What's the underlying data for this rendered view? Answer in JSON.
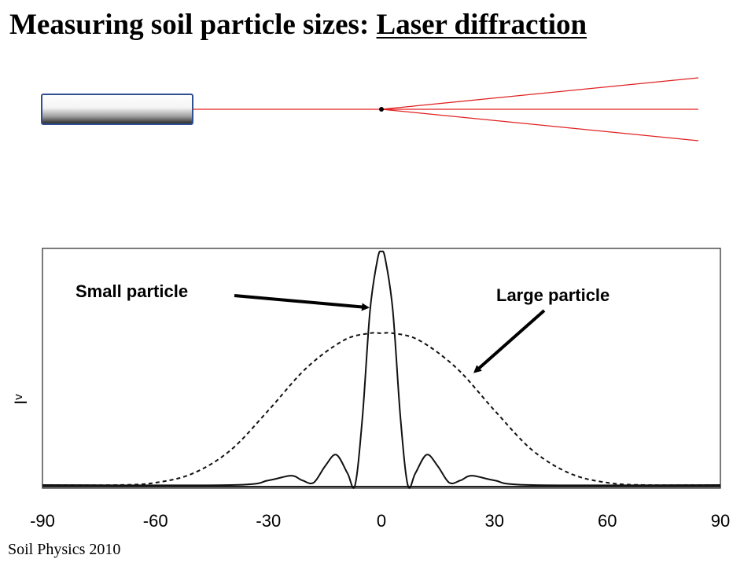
{
  "title": {
    "prefix": "Measuring soil particle sizes: ",
    "underlined": "Laser diffraction"
  },
  "labels": {
    "small": "Small particle",
    "large": "Large particle"
  },
  "footer": "Soil Physics 2010",
  "colors": {
    "beam": "#e02020",
    "laser_border": "#2f4f8f",
    "curve": "#111111"
  },
  "chart_data": {
    "type": "line",
    "x_ticks": [
      -90,
      -60,
      -30,
      0,
      30,
      60,
      90
    ],
    "xlim": [
      -90,
      90
    ],
    "ylabel": "Iv",
    "series": [
      {
        "name": "Small particle",
        "style": "solid",
        "x": [
          -90,
          -40,
          -30,
          -24,
          -21,
          -18,
          -15,
          -12,
          -9,
          -7,
          -5,
          -3,
          -1,
          0,
          1,
          3,
          5,
          7,
          9,
          12,
          15,
          18,
          21,
          24,
          30,
          40,
          90
        ],
        "y": [
          0,
          0,
          0.02,
          0.04,
          0.02,
          0.01,
          0.08,
          0.13,
          0.05,
          0,
          0.3,
          0.75,
          0.97,
          1,
          0.97,
          0.75,
          0.3,
          0,
          0.05,
          0.13,
          0.08,
          0.01,
          0.02,
          0.04,
          0.02,
          0,
          0
        ]
      },
      {
        "name": "Large particle",
        "style": "dashed",
        "x": [
          -90,
          -70,
          -60,
          -50,
          -40,
          -30,
          -20,
          -10,
          -3,
          0,
          3,
          10,
          20,
          30,
          40,
          50,
          60,
          70,
          90
        ],
        "y": [
          0,
          0,
          0.01,
          0.05,
          0.15,
          0.32,
          0.5,
          0.62,
          0.65,
          0.65,
          0.65,
          0.62,
          0.5,
          0.32,
          0.15,
          0.05,
          0.01,
          0,
          0
        ]
      }
    ]
  }
}
